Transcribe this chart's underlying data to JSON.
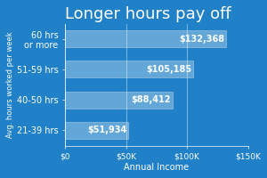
{
  "title": "Longer hours pay off",
  "xlabel": "Annual Income",
  "ylabel": "Avg. hours worked per week",
  "categories": [
    "60 hrs\nor more",
    "51-59 hrs",
    "40-50 hrs",
    "21-39 hrs"
  ],
  "values": [
    132368,
    105185,
    88412,
    51934
  ],
  "labels": [
    "$132,368",
    "$105,185",
    "$88,412",
    "$51,934"
  ],
  "background_color": "#2080C8",
  "bar_color": "#ffffff",
  "bar_alpha": 0.3,
  "bar_edge_color": "#ffffff",
  "text_color": "#ffffff",
  "xlim": [
    0,
    150000
  ],
  "xticks": [
    0,
    50000,
    100000,
    150000
  ],
  "xticklabels": [
    "$0",
    "$50K",
    "$100K",
    "$150K"
  ],
  "title_fontsize": 13,
  "label_fontsize": 7,
  "tick_fontsize": 6.5,
  "ylabel_fontsize": 6,
  "xlabel_fontsize": 7,
  "bar_height": 0.55
}
